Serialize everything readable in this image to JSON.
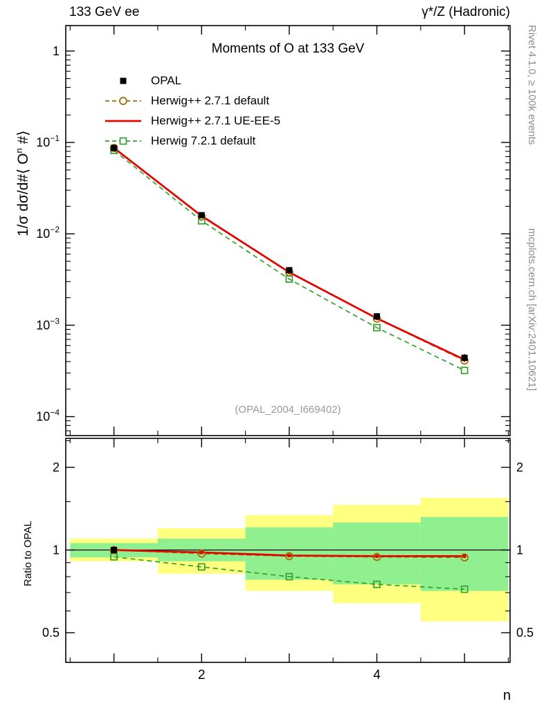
{
  "header": {
    "left": "133 GeV ee",
    "right": "γ*/Z (Hadronic)"
  },
  "side_notes": {
    "top": "Rivet 4.1.0, ≥ 100k events",
    "bottom": "mcplots.cern.ch [arXiv:2401.10621]"
  },
  "chart_data": {
    "type": "line",
    "title": "Moments of O at 133 GeV",
    "watermark": "(OPAL_2004_I669402)",
    "xlabel": "n",
    "ylabel_parts": {
      "prefix": "1/σ  dσ/d#⟨ O",
      "sup": "n",
      "suffix": " #⟩"
    },
    "ratio_label": "Ratio to OPAL",
    "x": [
      1,
      2,
      3,
      4,
      5
    ],
    "x_range": [
      0.45,
      5.52
    ],
    "x_labeled_ticks": [
      2,
      4
    ],
    "x_major_ticks": [
      1,
      2,
      3,
      4,
      5
    ],
    "x_minor_ticks": [
      0.5,
      1.5,
      2.5,
      3.5,
      4.5,
      5.5
    ],
    "main_axis": {
      "scale": "log",
      "y_min": 6.2e-05,
      "y_max": 1.9,
      "major_tick_exponents": [
        0,
        -1,
        -2,
        -3,
        -4
      ]
    },
    "ratio_axis": {
      "scale": "log",
      "y_min": 0.39,
      "y_max": 2.55,
      "major_ticks": [
        0.5,
        1,
        2
      ],
      "major_tick_labels": [
        "0.5",
        "1",
        "2"
      ],
      "minor_ticks": [
        0.6,
        0.7,
        0.8,
        0.9,
        1.5,
        2.5
      ],
      "reference_line": 1
    },
    "bands": {
      "outer_color": "#ffff80",
      "inner_color": "#90f090",
      "bins": [
        {
          "x": [
            0.5,
            1.5
          ],
          "outer": [
            0.91,
            1.1
          ],
          "inner": [
            0.94,
            1.06
          ]
        },
        {
          "x": [
            1.5,
            2.5
          ],
          "outer": [
            0.82,
            1.2
          ],
          "inner": [
            0.91,
            1.1
          ]
        },
        {
          "x": [
            2.5,
            3.5
          ],
          "outer": [
            0.71,
            1.34
          ],
          "inner": [
            0.78,
            1.21
          ]
        },
        {
          "x": [
            3.5,
            4.5
          ],
          "outer": [
            0.64,
            1.46
          ],
          "inner": [
            0.75,
            1.26
          ]
        },
        {
          "x": [
            4.5,
            5.5
          ],
          "outer": [
            0.55,
            1.55
          ],
          "inner": [
            0.71,
            1.32
          ]
        }
      ]
    },
    "series": [
      {
        "id": "opal",
        "label": "OPAL",
        "color": "#000000",
        "line": "none",
        "marker": "filled-square",
        "values": [
          0.087,
          0.016,
          0.004,
          0.00125,
          0.00044
        ],
        "rel_err": [
          0.04,
          0.04,
          0.05,
          0.07,
          0.1
        ],
        "ratio_x": [
          1
        ],
        "ratio_values": [
          1.0
        ]
      },
      {
        "id": "herwigpp-default",
        "label": "Herwig++ 2.7.1 default",
        "color": "#aa6600",
        "line": "dashed",
        "marker": "open-circle",
        "values": [
          0.087,
          0.0155,
          0.0038,
          0.00118,
          0.00041
        ],
        "ratio": [
          1.0,
          0.97,
          0.95,
          0.944,
          0.94
        ]
      },
      {
        "id": "herwigpp-ueee5",
        "label": "Herwig++ 2.7.1 UE-EE-5",
        "color": "#e10600",
        "line": "solid",
        "marker": "dot",
        "values": [
          0.087,
          0.0157,
          0.0038,
          0.00119,
          0.00042
        ],
        "ratio": [
          1.0,
          0.98,
          0.955,
          0.95,
          0.95
        ]
      },
      {
        "id": "herwig7-default",
        "label": "Herwig 7.2.1 default",
        "color": "#33a02c",
        "line": "dashed",
        "marker": "open-square",
        "values": [
          0.082,
          0.0139,
          0.0032,
          0.00094,
          0.00032
        ],
        "ratio": [
          0.945,
          0.868,
          0.8,
          0.75,
          0.72
        ]
      }
    ]
  }
}
